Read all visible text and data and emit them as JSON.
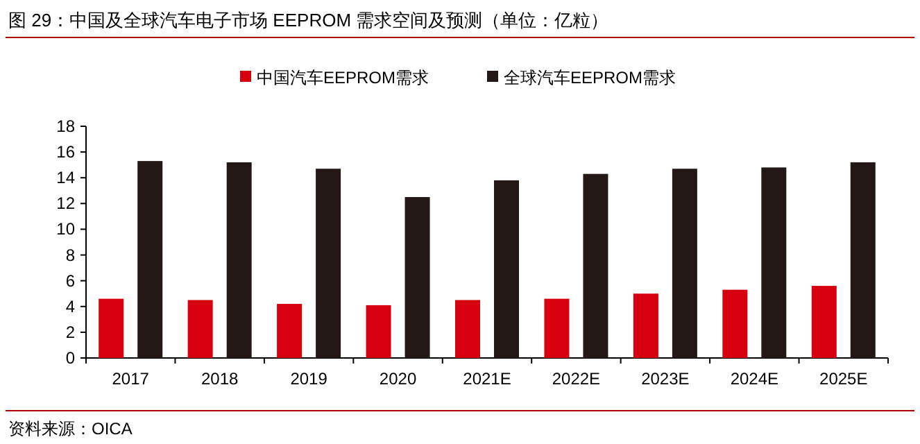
{
  "chart_data": {
    "type": "bar",
    "title": "图 29：中国及全球汽车电子市场 EEPROM 需求空间及预测（单位：亿粒）",
    "categories": [
      "2017",
      "2018",
      "2019",
      "2020",
      "2021E",
      "2022E",
      "2023E",
      "2024E",
      "2025E"
    ],
    "series": [
      {
        "name": "中国汽车EEPROM需求",
        "color": "#d7000f",
        "values": [
          4.6,
          4.5,
          4.2,
          4.1,
          4.5,
          4.6,
          5.0,
          5.3,
          5.6
        ]
      },
      {
        "name": "全球汽车EEPROM需求",
        "color": "#231815",
        "values": [
          15.3,
          15.2,
          14.7,
          12.5,
          13.8,
          14.3,
          14.7,
          14.8,
          15.2
        ]
      }
    ],
    "ylim": [
      0,
      18
    ],
    "yticks": [
      0,
      2,
      4,
      6,
      8,
      10,
      12,
      14,
      16,
      18
    ],
    "grid": false,
    "legend": "top",
    "annotations": [
      "资料来源：OICA"
    ]
  }
}
